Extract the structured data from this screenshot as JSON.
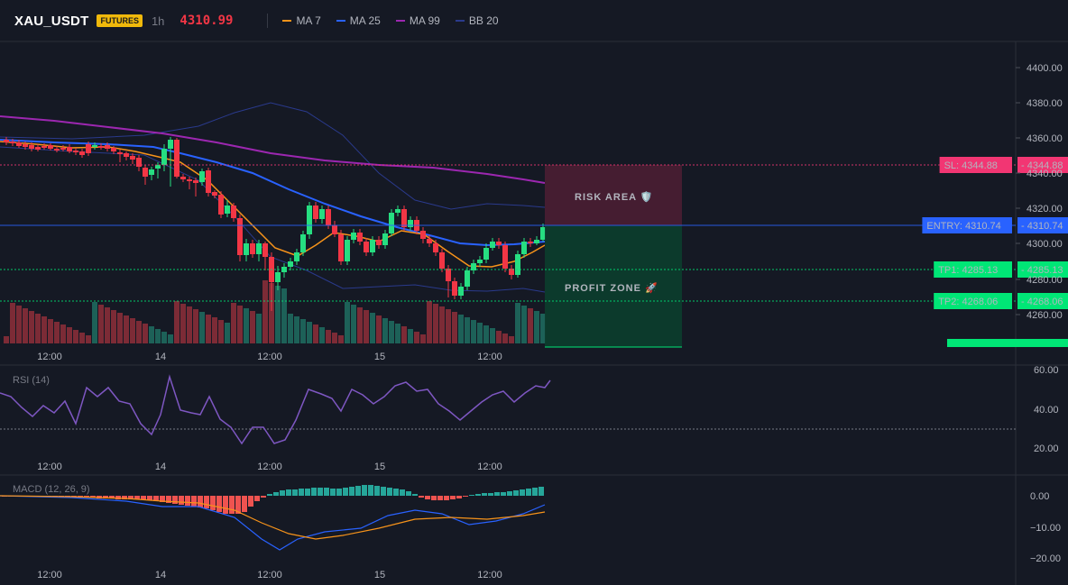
{
  "header": {
    "symbol": "XAU_USDT",
    "badge": "FUTURES",
    "timeframe": "1h",
    "last_price": "4310.99",
    "indicators": [
      {
        "label": "MA 7",
        "color": "#f7931a"
      },
      {
        "label": "MA 25",
        "color": "#2962ff"
      },
      {
        "label": "MA 99",
        "color": "#9c27b0"
      },
      {
        "label": "BB 20",
        "color": "#2a3a8c"
      }
    ]
  },
  "main": {
    "price_axis": [
      "4400.00",
      "4380.00",
      "4360.00",
      "4340.00",
      "4320.00",
      "4300.00",
      "4280.00",
      "4260.00"
    ],
    "time_axis": [
      "12:00",
      "14",
      "12:00",
      "15",
      "12:00"
    ],
    "risk_label": "RISK AREA 🛡️",
    "profit_label": "PROFIT ZONE 🚀",
    "levels": [
      {
        "tag": "SL: 4344.88",
        "value": "4344.88",
        "color": "#f23673"
      },
      {
        "tag": "ENTRY: 4310.74",
        "value": "4310.74",
        "color": "#2962ff"
      },
      {
        "tag": "TP1: 4285.13",
        "value": "4285.13",
        "color": "#00e676"
      },
      {
        "tag": "TP2: 4268.06",
        "value": "4268.06",
        "color": "#00e676"
      }
    ]
  },
  "rsi": {
    "title": "RSI (14)",
    "axis": [
      "60.00",
      "40.00",
      "20.00"
    ],
    "time_axis": [
      "12:00",
      "14",
      "12:00",
      "15",
      "12:00"
    ]
  },
  "macd": {
    "title": "MACD (12, 26, 9)",
    "axis": [
      "0.00",
      "−10.00",
      "−20.00"
    ],
    "time_axis": [
      "12:00",
      "14",
      "12:00",
      "15",
      "12:00"
    ]
  },
  "colors": {
    "up": "#26de81",
    "down": "#f23645",
    "vol_up": "#1f6e62",
    "vol_down": "#8e2f3a",
    "macd_pos": "#26a69a",
    "macd_neg": "#ef5350"
  }
}
